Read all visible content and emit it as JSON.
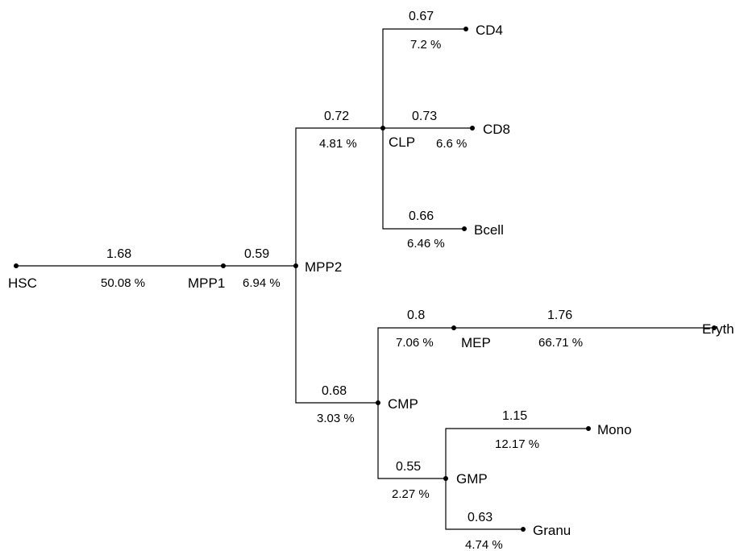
{
  "nodes": {
    "hsc": "HSC",
    "mpp1": "MPP1",
    "mpp2": "MPP2",
    "clp": "CLP",
    "cd4": "CD4",
    "cd8": "CD8",
    "bcell": "Bcell",
    "cmp": "CMP",
    "mep": "MEP",
    "eryth": "Eryth",
    "gmp": "GMP",
    "mono": "Mono",
    "granu": "Granu"
  },
  "edges": {
    "hsc_mpp1": {
      "value": "1.68",
      "percent": "50.08 %"
    },
    "mpp1_mpp2": {
      "value": "0.59",
      "percent": "6.94 %"
    },
    "mpp2_clp": {
      "value": "0.72",
      "percent": "4.81 %"
    },
    "clp_cd4": {
      "value": "0.67",
      "percent": "7.2 %"
    },
    "clp_cd8": {
      "value": "0.73",
      "percent": "6.6 %"
    },
    "clp_bcell": {
      "value": "0.66",
      "percent": "6.46 %"
    },
    "mpp2_cmp": {
      "value": "0.68",
      "percent": "3.03 %"
    },
    "cmp_mep": {
      "value": "0.8",
      "percent": "7.06 %"
    },
    "mep_eryth": {
      "value": "1.76",
      "percent": "66.71 %"
    },
    "cmp_gmp": {
      "value": "0.55",
      "percent": "2.27 %"
    },
    "gmp_mono": {
      "value": "1.15",
      "percent": "12.17 %"
    },
    "gmp_granu": {
      "value": "0.63",
      "percent": "4.74 %"
    }
  }
}
